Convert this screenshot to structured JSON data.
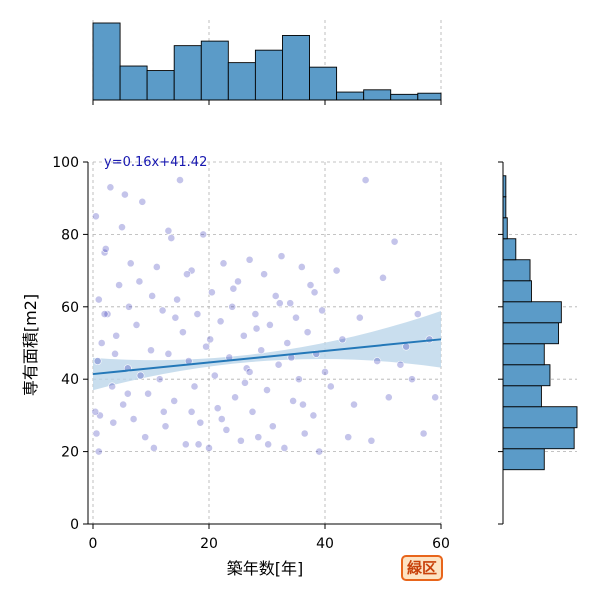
{
  "badge": {
    "label": "緑区",
    "border_color": "#e8651b",
    "fill_color": "#fde3c3",
    "text_color": "#c8410a"
  },
  "colors": {
    "hist_fill": "#5b9bc8",
    "scatter": "#2a2ab4",
    "reg_line": "#2478b8",
    "reg_band": "#bcd6ea",
    "eq_text": "#1818b0"
  },
  "chart_data": {
    "type": "scatter",
    "xlabel": "築年数[年]",
    "ylabel": "専有面積[m2]",
    "xlim": [
      0,
      60
    ],
    "ylim": [
      0,
      100
    ],
    "x_ticks": [
      "0",
      "20",
      "40",
      "60"
    ],
    "y_ticks": [
      "0",
      "20",
      "40",
      "60",
      "80",
      "100"
    ],
    "grid": true,
    "regression": {
      "label": "y=0.16x+41.42",
      "slope": 0.16,
      "intercept": 41.42
    },
    "marginal_x_hist": {
      "bin_edges": [
        0,
        4.67,
        9.33,
        14,
        18.67,
        23.33,
        28,
        32.67,
        37.33,
        42,
        46.67,
        51.33,
        56,
        60.67
      ],
      "counts": [
        68,
        30,
        26,
        48,
        52,
        33,
        44,
        57,
        29,
        7,
        9,
        5,
        6
      ]
    },
    "marginal_y_hist": {
      "bin_edges": [
        15,
        20.8,
        26.6,
        32.4,
        38.2,
        44,
        49.8,
        55.6,
        61.4,
        67.2,
        73,
        78.8,
        84.6,
        90.4,
        96.2
      ],
      "counts": [
        29,
        50,
        52,
        27,
        33,
        29,
        39,
        41,
        20,
        19,
        9,
        3,
        2,
        2
      ]
    },
    "points": [
      [
        0.5,
        85
      ],
      [
        1,
        62
      ],
      [
        0.8,
        45
      ],
      [
        1.2,
        30
      ],
      [
        0.4,
        31
      ],
      [
        0.6,
        25
      ],
      [
        1.5,
        50
      ],
      [
        2,
        75
      ],
      [
        2.2,
        76
      ],
      [
        2.5,
        58
      ],
      [
        3,
        93
      ],
      [
        3.3,
        38
      ],
      [
        3.5,
        28
      ],
      [
        4,
        52
      ],
      [
        4.5,
        66
      ],
      [
        5,
        82
      ],
      [
        5.2,
        33
      ],
      [
        5.5,
        91
      ],
      [
        6,
        43
      ],
      [
        6.5,
        72
      ],
      [
        7,
        29
      ],
      [
        7.5,
        55
      ],
      [
        8,
        67
      ],
      [
        8.5,
        89
      ],
      [
        9,
        24
      ],
      [
        9.5,
        36
      ],
      [
        10,
        48
      ],
      [
        10.5,
        21
      ],
      [
        11,
        71
      ],
      [
        11.5,
        40
      ],
      [
        12,
        59
      ],
      [
        12.5,
        27
      ],
      [
        13,
        81
      ],
      [
        13.5,
        79
      ],
      [
        14,
        34
      ],
      [
        14.5,
        62
      ],
      [
        15,
        95
      ],
      [
        15.5,
        53
      ],
      [
        16,
        22
      ],
      [
        16.5,
        45
      ],
      [
        17,
        70
      ],
      [
        17.5,
        38
      ],
      [
        18,
        58
      ],
      [
        18.5,
        28
      ],
      [
        19,
        80
      ],
      [
        19.5,
        49
      ],
      [
        20,
        21
      ],
      [
        20.5,
        64
      ],
      [
        21,
        41
      ],
      [
        21.5,
        32
      ],
      [
        22,
        56
      ],
      [
        22.5,
        72
      ],
      [
        23,
        26
      ],
      [
        23.5,
        46
      ],
      [
        24,
        60
      ],
      [
        24.5,
        35
      ],
      [
        25,
        67
      ],
      [
        25.5,
        23
      ],
      [
        26,
        52
      ],
      [
        26.5,
        43
      ],
      [
        27,
        73
      ],
      [
        27.5,
        31
      ],
      [
        28,
        58
      ],
      [
        28.5,
        24
      ],
      [
        29,
        48
      ],
      [
        29.5,
        69
      ],
      [
        30,
        37
      ],
      [
        30.5,
        55
      ],
      [
        31,
        27
      ],
      [
        31.5,
        63
      ],
      [
        32,
        44
      ],
      [
        32.5,
        74
      ],
      [
        33,
        21
      ],
      [
        33.5,
        50
      ],
      [
        34,
        61
      ],
      [
        34.5,
        34
      ],
      [
        35,
        57
      ],
      [
        35.5,
        40
      ],
      [
        36,
        71
      ],
      [
        36.5,
        25
      ],
      [
        37,
        53
      ],
      [
        37.5,
        66
      ],
      [
        38,
        30
      ],
      [
        38.5,
        47
      ],
      [
        39,
        20
      ],
      [
        39.5,
        59
      ],
      [
        40,
        42
      ],
      [
        41,
        38
      ],
      [
        42,
        70
      ],
      [
        43,
        51
      ],
      [
        44,
        24
      ],
      [
        45,
        33
      ],
      [
        46,
        57
      ],
      [
        47,
        95
      ],
      [
        48,
        23
      ],
      [
        49,
        45
      ],
      [
        50,
        68
      ],
      [
        51,
        35
      ],
      [
        52,
        78
      ],
      [
        53,
        44
      ],
      [
        54,
        49
      ],
      [
        55,
        40
      ],
      [
        56,
        58
      ],
      [
        57,
        25
      ],
      [
        58,
        51
      ],
      [
        59,
        35
      ],
      [
        1,
        20
      ],
      [
        2,
        58
      ],
      [
        3.8,
        47
      ],
      [
        6.2,
        60
      ],
      [
        8.2,
        41
      ],
      [
        10.2,
        63
      ],
      [
        12.2,
        31
      ],
      [
        14.2,
        57
      ],
      [
        16.2,
        69
      ],
      [
        18.2,
        22
      ],
      [
        20.2,
        51
      ],
      [
        22.2,
        29
      ],
      [
        24.2,
        65
      ],
      [
        26.2,
        39
      ],
      [
        28.2,
        54
      ],
      [
        30.2,
        22
      ],
      [
        32.2,
        61
      ],
      [
        34.2,
        46
      ],
      [
        36.2,
        33
      ],
      [
        38.2,
        64
      ],
      [
        6,
        36
      ],
      [
        13,
        47
      ],
      [
        17,
        31
      ],
      [
        27,
        42
      ]
    ]
  }
}
